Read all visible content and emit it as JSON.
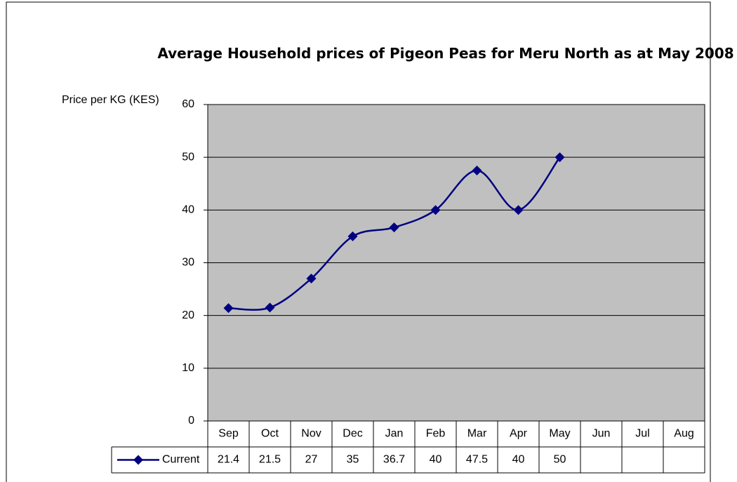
{
  "chart_data": {
    "type": "line",
    "title": "Average Household prices of Pigeon Peas for Meru North as at May 2008",
    "y_label": "Price per KG (KES)",
    "categories": [
      "Sep",
      "Oct",
      "Nov",
      "Dec",
      "Jan",
      "Feb",
      "Mar",
      "Apr",
      "May",
      "Jun",
      "Jul",
      "Aug"
    ],
    "series": [
      {
        "name": "Current",
        "color": "#000080",
        "values": [
          21.4,
          21.5,
          27,
          35,
          36.7,
          40,
          47.5,
          40,
          50,
          null,
          null,
          null
        ]
      }
    ],
    "ylim": [
      0,
      60
    ],
    "yticks": [
      0,
      10,
      20,
      30,
      40,
      50,
      60
    ],
    "grid": true,
    "data_table": true
  }
}
